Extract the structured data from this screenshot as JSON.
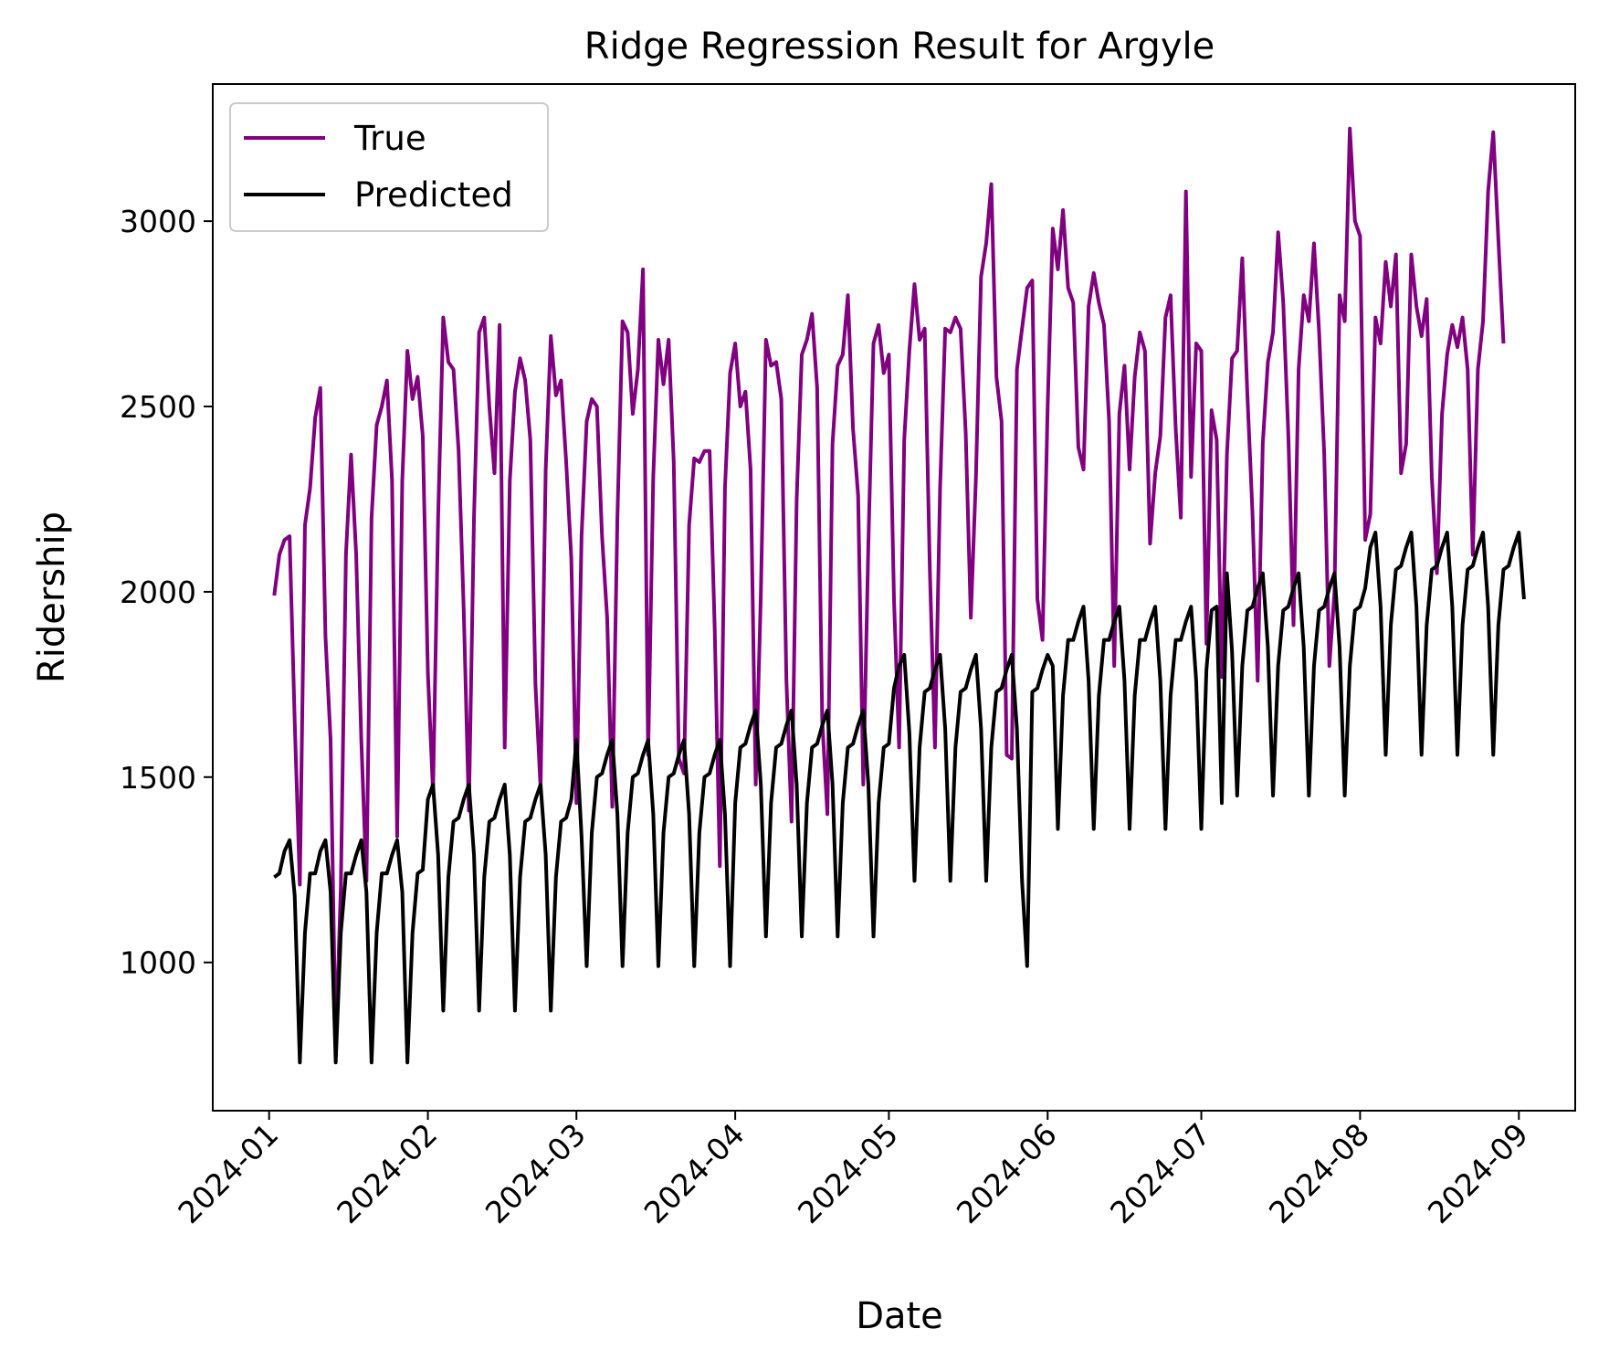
{
  "chart_data": {
    "type": "line",
    "title": "Ridge Regression Result for Argyle",
    "xlabel": "Date",
    "ylabel": "Ridership",
    "x_start": "2024-01-02",
    "x_end": "2024-08-31",
    "xlim": [
      "2023-12-21",
      "2024-09-12"
    ],
    "ylim": [
      600,
      3370
    ],
    "x_tick_labels": [
      "2024-01",
      "2024-02",
      "2024-03",
      "2024-04",
      "2024-05",
      "2024-06",
      "2024-07",
      "2024-08",
      "2024-09"
    ],
    "x_ticks": [
      "2024-01-01",
      "2024-02-01",
      "2024-03-01",
      "2024-04-01",
      "2024-05-01",
      "2024-06-01",
      "2024-07-01",
      "2024-08-01",
      "2024-09-01"
    ],
    "y_ticks": [
      1000,
      1500,
      2000,
      2500,
      3000
    ],
    "grid": false,
    "legend_position": "top-left",
    "series": [
      {
        "name": "True",
        "color": "#800080",
        "values": [
          1990,
          2100,
          2140,
          2150,
          1650,
          1210,
          2180,
          2280,
          2470,
          2550,
          1880,
          1600,
          770,
          1200,
          2100,
          2370,
          2100,
          1600,
          1220,
          2200,
          2450,
          2500,
          2570,
          2300,
          1340,
          2300,
          2650,
          2520,
          2580,
          2420,
          1780,
          1460,
          2200,
          2740,
          2620,
          2600,
          2380,
          1950,
          1410,
          2200,
          2700,
          2740,
          2500,
          2320,
          2720,
          1580,
          2300,
          2540,
          2630,
          2570,
          2410,
          1750,
          1470,
          2330,
          2690,
          2530,
          2570,
          2350,
          2090,
          1430,
          2150,
          2460,
          2520,
          2500,
          2150,
          1930,
          1420,
          2200,
          2730,
          2700,
          2480,
          2600,
          2870,
          1560,
          2310,
          2680,
          2560,
          2680,
          2350,
          1550,
          1510,
          2180,
          2360,
          2350,
          2380,
          2380,
          1900,
          1260,
          2280,
          2590,
          2670,
          2500,
          2540,
          2330,
          1480,
          1990,
          2680,
          2610,
          2620,
          2520,
          1760,
          1380,
          2250,
          2640,
          2680,
          2750,
          2550,
          1650,
          1400,
          2400,
          2610,
          2640,
          2800,
          2440,
          2260,
          1480,
          2130,
          2670,
          2720,
          2590,
          2640,
          1980,
          1580,
          2410,
          2650,
          2830,
          2680,
          2710,
          2060,
          1580,
          2280,
          2710,
          2700,
          2740,
          2710,
          2430,
          1930,
          2310,
          2850,
          2940,
          3100,
          2580,
          2460,
          1560,
          1550,
          2600,
          2710,
          2820,
          2840,
          1980,
          1870,
          2500,
          2980,
          2870,
          3030,
          2820,
          2780,
          2390,
          2330,
          2770,
          2860,
          2780,
          2720,
          2460,
          1800,
          2480,
          2610,
          2330,
          2580,
          2700,
          2650,
          2130,
          2320,
          2420,
          2740,
          2800,
          2440,
          2200,
          3080,
          2310,
          2670,
          2650,
          1860,
          2490,
          2410,
          1770,
          2370,
          2630,
          2650,
          2900,
          2530,
          2210,
          1760,
          2400,
          2620,
          2700,
          2970,
          2780,
          2420,
          1910,
          2600,
          2800,
          2730,
          2940,
          2700,
          2370,
          1800,
          2000,
          2800,
          2730,
          3250,
          3000,
          2960,
          2140,
          2210,
          2740,
          2670,
          2890,
          2770,
          2910,
          2320,
          2400,
          2910,
          2770,
          2690,
          2790,
          2310,
          2050,
          2480,
          2640,
          2720,
          2660,
          2740,
          2600,
          2100,
          2600,
          2730,
          3080,
          3240,
          2950,
          2670
        ]
      },
      {
        "name": "Predicted",
        "color": "#000000",
        "values": [
          1230,
          1240,
          1300,
          1330,
          1180,
          730,
          1080,
          1240,
          1240,
          1300,
          1330,
          1190,
          730,
          1080,
          1240,
          1240,
          1290,
          1330,
          1190,
          730,
          1080,
          1240,
          1240,
          1290,
          1330,
          1190,
          730,
          1080,
          1240,
          1250,
          1440,
          1480,
          1290,
          870,
          1230,
          1380,
          1390,
          1440,
          1480,
          1290,
          870,
          1230,
          1380,
          1390,
          1440,
          1480,
          1290,
          870,
          1230,
          1380,
          1390,
          1440,
          1480,
          1290,
          870,
          1230,
          1380,
          1390,
          1440,
          1600,
          1340,
          990,
          1350,
          1500,
          1510,
          1560,
          1600,
          1400,
          990,
          1350,
          1500,
          1510,
          1560,
          1600,
          1400,
          990,
          1350,
          1500,
          1510,
          1560,
          1600,
          1400,
          990,
          1350,
          1500,
          1510,
          1560,
          1600,
          1400,
          990,
          1430,
          1580,
          1590,
          1640,
          1680,
          1480,
          1070,
          1430,
          1580,
          1590,
          1640,
          1680,
          1480,
          1070,
          1430,
          1580,
          1590,
          1640,
          1680,
          1480,
          1070,
          1430,
          1580,
          1590,
          1640,
          1680,
          1480,
          1070,
          1430,
          1580,
          1590,
          1740,
          1800,
          1830,
          1620,
          1220,
          1580,
          1730,
          1740,
          1790,
          1830,
          1630,
          1220,
          1580,
          1730,
          1740,
          1790,
          1830,
          1630,
          1220,
          1580,
          1730,
          1740,
          1790,
          1830,
          1630,
          1220,
          990,
          1730,
          1740,
          1790,
          1830,
          1800,
          1360,
          1720,
          1870,
          1870,
          1920,
          1960,
          1760,
          1360,
          1720,
          1870,
          1870,
          1920,
          1960,
          1760,
          1360,
          1720,
          1870,
          1870,
          1920,
          1960,
          1760,
          1360,
          1720,
          1870,
          1870,
          1920,
          1960,
          1760,
          1360,
          1790,
          1950,
          1960,
          1430,
          2050,
          1840,
          1450,
          1800,
          1950,
          1960,
          2010,
          2050,
          1850,
          1450,
          1800,
          1950,
          1960,
          2010,
          2050,
          1850,
          1450,
          1800,
          1950,
          1960,
          2010,
          2050,
          1850,
          1450,
          1800,
          1950,
          1960,
          2010,
          2120,
          2160,
          1960,
          1560,
          1910,
          2060,
          2070,
          2120,
          2160,
          1960,
          1560,
          1910,
          2060,
          2070,
          2120,
          2160,
          1960,
          1560,
          1910,
          2060,
          2070,
          2120,
          2160,
          1960,
          1560,
          1910,
          2060,
          2070,
          2120,
          2160,
          1980
        ]
      }
    ]
  }
}
